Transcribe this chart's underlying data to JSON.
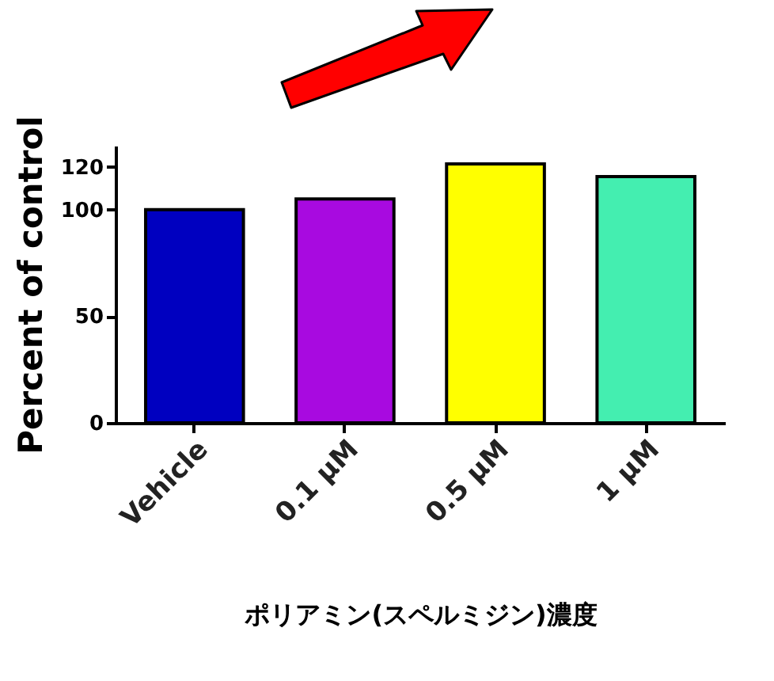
{
  "chart_data": {
    "type": "bar",
    "xlabel": "ポリアミン(スペルミジン)濃度",
    "ylabel": "Percent of control",
    "categories": [
      "Vehicle",
      "0.1 µM",
      "0.5 µM",
      "1  µM"
    ],
    "values": [
      100,
      105,
      121.5,
      115.5
    ],
    "colors": [
      "#0000c0",
      "#a80ae0",
      "#ffff00",
      "#44eeb0"
    ],
    "ylim": [
      0,
      130
    ],
    "yticks": [
      0,
      50,
      100,
      120
    ],
    "grid": false,
    "legend": false
  }
}
